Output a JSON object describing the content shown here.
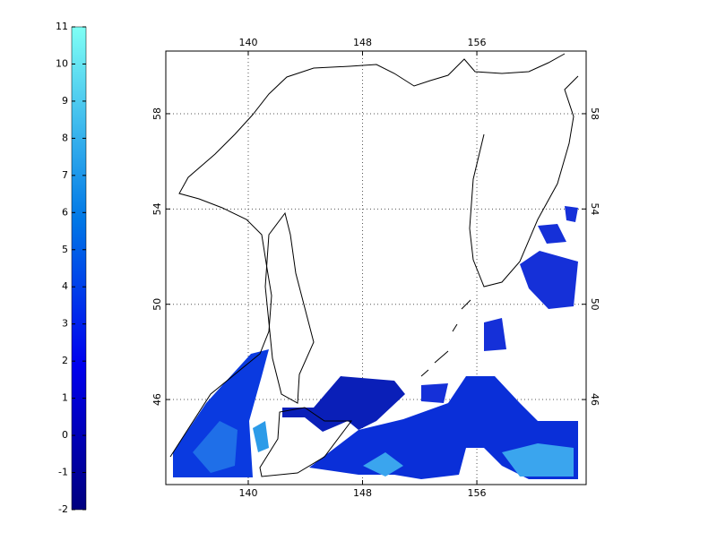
{
  "colorbar": {
    "lim": [
      -2,
      11
    ],
    "ticks": [
      -2,
      -1,
      0,
      1,
      2,
      3,
      4,
      5,
      6,
      7,
      8,
      9,
      10,
      11
    ]
  },
  "map": {
    "lon_lim": [
      134.23,
      163.65
    ],
    "lat_lim": [
      42.43,
      60.63
    ],
    "lon_ticks": [
      140,
      148,
      156
    ],
    "lat_ticks": [
      46,
      50,
      54,
      58
    ],
    "grid": true
  }
}
